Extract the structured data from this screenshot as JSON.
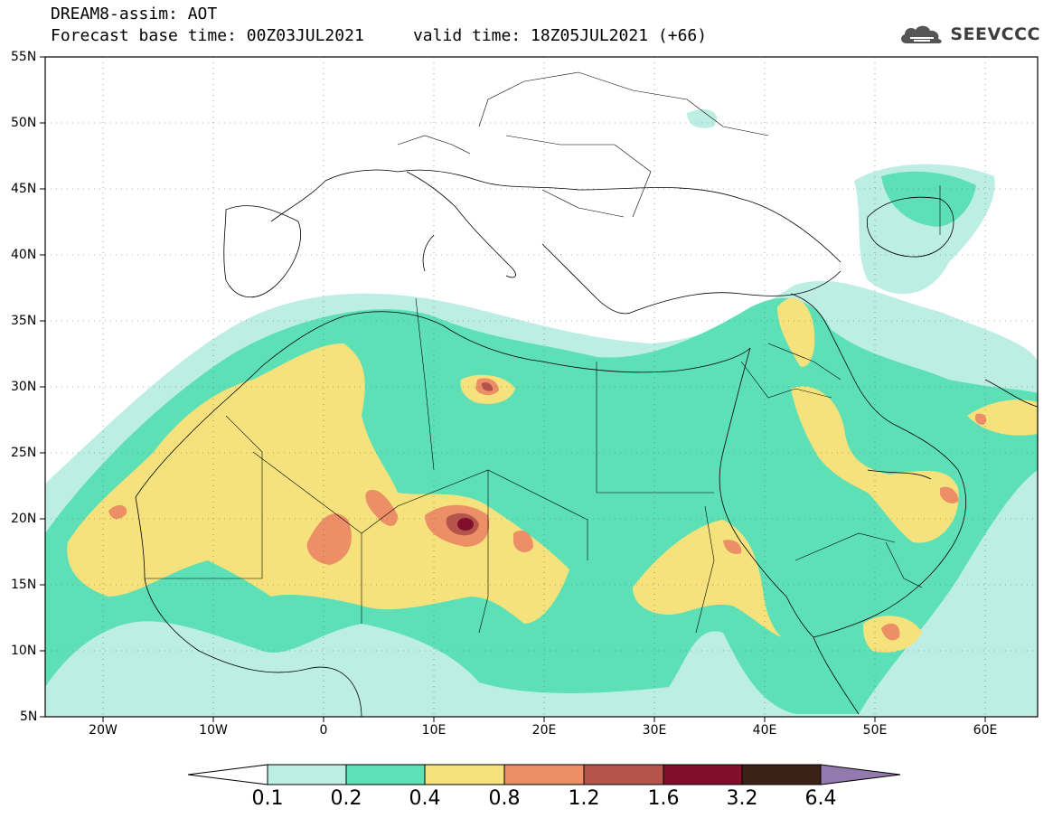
{
  "header": {
    "line1": "DREAM8-assim: AOT",
    "line2": "Forecast base time: 00Z03JUL2021     valid time: 18Z05JUL2021 (+66)",
    "brand": "SEEVCCC",
    "brand_icon": "cloud-icon"
  },
  "map": {
    "lat_labels": [
      "55N",
      "50N",
      "45N",
      "40N",
      "35N",
      "30N",
      "25N",
      "20N",
      "15N",
      "10N",
      "5N"
    ],
    "lon_labels": [
      "20W",
      "10W",
      "0",
      "10E",
      "20E",
      "30E",
      "40E",
      "50E",
      "60E"
    ],
    "extent": {
      "lon": [
        -25,
        65
      ],
      "lat": [
        5,
        55
      ]
    },
    "gridlines": "dotted"
  },
  "colorbar": {
    "labels": [
      "0.1",
      "0.2",
      "0.4",
      "0.8",
      "1.2",
      "1.6",
      "3.2",
      "6.4"
    ],
    "colors": [
      "#ffffff",
      "#bdeee3",
      "#5de0b6",
      "#f6e27c",
      "#ec8f66",
      "#b5544a",
      "#810e2a",
      "#3b2216",
      "#9279ae"
    ]
  }
}
